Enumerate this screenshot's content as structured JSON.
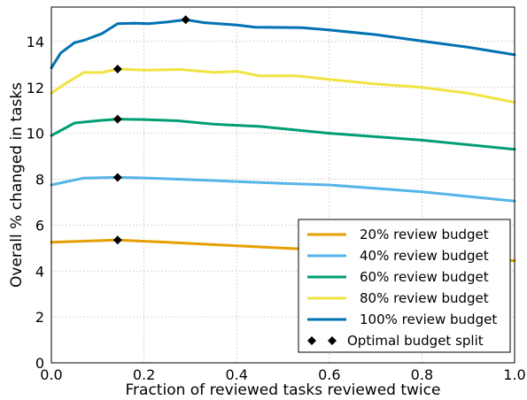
{
  "chart_data": {
    "type": "line",
    "xlabel": "Fraction of reviewed tasks reviewed twice",
    "ylabel": "Overall % changed in tasks",
    "xlim": [
      0.0,
      1.0
    ],
    "ylim": [
      0,
      15.5
    ],
    "xticks": [
      "0.0",
      "0.2",
      "0.4",
      "0.6",
      "0.8",
      "1.0"
    ],
    "yticks": [
      "0",
      "2",
      "4",
      "6",
      "8",
      "10",
      "12",
      "14"
    ],
    "grid": true,
    "legend_position": "bottom-right",
    "series": [
      {
        "name": "20% review budget",
        "color": "#e69f00",
        "x": [
          0.0,
          0.143,
          0.25,
          0.4,
          0.6,
          1.0
        ],
        "y": [
          5.25,
          5.35,
          5.25,
          5.1,
          4.9,
          4.45
        ]
      },
      {
        "name": "40% review budget",
        "color": "#56b4e9",
        "x": [
          0.0,
          0.07,
          0.143,
          0.21,
          0.3,
          0.5,
          0.6,
          0.8,
          1.0
        ],
        "y": [
          7.75,
          8.05,
          8.08,
          8.05,
          7.98,
          7.82,
          7.75,
          7.45,
          7.05
        ]
      },
      {
        "name": "60% review budget",
        "color": "#009e73",
        "x": [
          0.0,
          0.05,
          0.1,
          0.143,
          0.2,
          0.27,
          0.35,
          0.45,
          0.6,
          0.8,
          1.0
        ],
        "y": [
          9.9,
          10.45,
          10.55,
          10.62,
          10.6,
          10.55,
          10.4,
          10.3,
          10.0,
          9.7,
          9.3
        ]
      },
      {
        "name": "80% review budget",
        "color": "#f0e442",
        "x": [
          0.0,
          0.025,
          0.07,
          0.11,
          0.143,
          0.2,
          0.28,
          0.35,
          0.4,
          0.45,
          0.53,
          0.6,
          0.7,
          0.8,
          0.9,
          1.0
        ],
        "y": [
          11.75,
          12.1,
          12.65,
          12.65,
          12.8,
          12.75,
          12.78,
          12.65,
          12.7,
          12.5,
          12.5,
          12.35,
          12.15,
          12.0,
          11.75,
          11.35
        ]
      },
      {
        "name": "100% review budget",
        "color": "#0072b2",
        "x": [
          0.0,
          0.02,
          0.05,
          0.07,
          0.11,
          0.143,
          0.18,
          0.21,
          0.25,
          0.29,
          0.33,
          0.4,
          0.44,
          0.54,
          0.6,
          0.7,
          0.8,
          0.9,
          1.0
        ],
        "y": [
          12.85,
          13.5,
          13.95,
          14.05,
          14.35,
          14.78,
          14.8,
          14.78,
          14.85,
          14.95,
          14.82,
          14.72,
          14.62,
          14.6,
          14.5,
          14.3,
          14.02,
          13.75,
          13.42
        ]
      }
    ],
    "optimal_points": {
      "name": "Optimal budget split",
      "marker": "diamond",
      "color": "#000000",
      "x": [
        0.143,
        0.143,
        0.143,
        0.143,
        0.29
      ],
      "y": [
        5.35,
        8.08,
        10.62,
        12.8,
        14.95
      ]
    }
  }
}
